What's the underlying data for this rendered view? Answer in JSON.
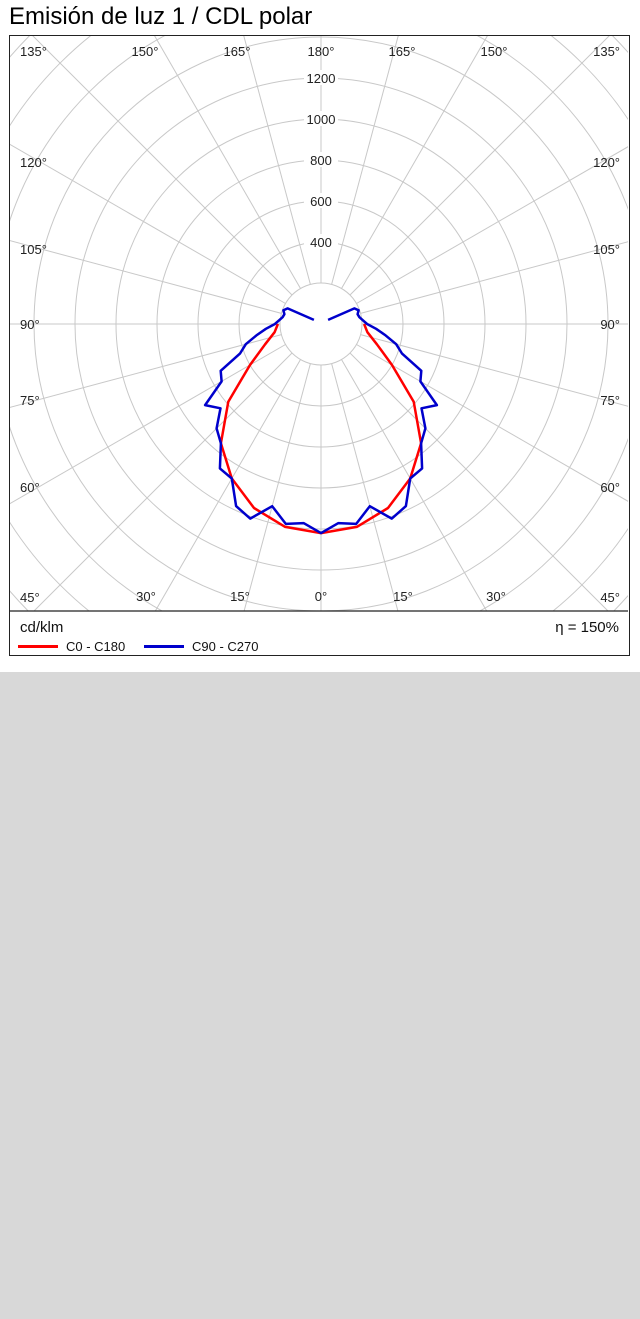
{
  "title": "Emisión de luz 1 / CDL polar",
  "unit_label": "cd/klm",
  "efficiency_label": "η = 150%",
  "colors": {
    "c0_c180": "#ff0000",
    "c90_c270": "#0000cc",
    "grid": "#c8c8c8"
  },
  "chart_data": {
    "type": "polar",
    "title": "Emisión de luz 1 / CDL polar",
    "radial_unit": "cd/klm",
    "radial_ticks": [
      400,
      600,
      800,
      1000,
      1200
    ],
    "radial_max": 1400,
    "angle_labels": {
      "left": [
        "135°",
        "120°",
        "105°",
        "90°",
        "75°",
        "60°",
        "45°"
      ],
      "right": [
        "135°",
        "120°",
        "105°",
        "90°",
        "75°",
        "60°",
        "45°"
      ],
      "top": [
        "150°",
        "165°",
        "180°",
        "165°",
        "150°"
      ],
      "bottom": [
        "30°",
        "15°",
        "0°",
        "15°",
        "30°"
      ]
    },
    "series": [
      {
        "name": "C0 - C180",
        "color": "#ff0000",
        "angles": [
          0,
          10,
          20,
          30,
          40,
          50,
          60,
          70,
          80,
          90
        ],
        "values": [
          1020,
          1005,
          955,
          870,
          760,
          590,
          400,
          290,
          230,
          210
        ]
      },
      {
        "name": "C90 - C270",
        "color": "#0000cc",
        "angles": [
          0,
          5,
          10,
          15,
          20,
          25,
          30,
          35,
          40,
          45,
          50,
          55,
          60,
          65,
          70,
          75,
          80,
          85,
          90,
          95,
          100,
          105,
          110,
          115,
          120
        ],
        "values": [
          1020,
          975,
          990,
          920,
          1010,
          980,
          870,
          860,
          760,
          720,
          640,
          690,
          560,
          540,
          420,
          380,
          320,
          270,
          225,
          205,
          190,
          185,
          195,
          180,
          40
        ]
      }
    ]
  },
  "legend": [
    {
      "label": "C0 - C180",
      "color": "#ff0000"
    },
    {
      "label": "C90 - C270",
      "color": "#0000cc"
    }
  ]
}
